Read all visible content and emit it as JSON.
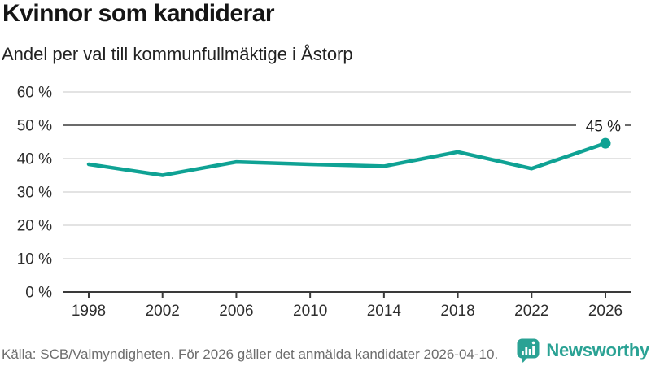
{
  "chart_data": {
    "type": "line",
    "title": "Kvinnor som kandiderar",
    "subtitle": "Andel per val till kommunfullmäktige i Åstorp",
    "x": [
      1998,
      2002,
      2006,
      2010,
      2014,
      2018,
      2022,
      2026
    ],
    "xtick_labels": [
      "1998",
      "2002",
      "2006",
      "2010",
      "2014",
      "2018",
      "2022",
      "2026"
    ],
    "values": [
      38.3,
      35,
      39,
      38.3,
      37.7,
      42,
      37,
      44.6
    ],
    "unit": "%",
    "ylim": [
      0,
      60
    ],
    "yticks": [
      0,
      10,
      20,
      30,
      40,
      50,
      60
    ],
    "ytick_labels": [
      "0 %",
      "10 %",
      "20 %",
      "30 %",
      "40 %",
      "50 %",
      "60 %"
    ],
    "grid": true,
    "emphasized_gridline": 50,
    "end_label": "45 %",
    "legend_position": "none",
    "line_color": "#0fa294",
    "axis_color": "#3a3a3a",
    "gridline_color": "#dadada",
    "emphasized_gridline_color": "#6b6b6b",
    "tick_label_color": "#2e2e2e",
    "end_label_color": "#1a1a1a"
  },
  "footer": {
    "source": "Källa: SCB/Valmyndigheten. För 2026 gäller det anmälda kandidater 2026-04-10.",
    "brand": "Newsworthy",
    "brand_color": "#2aa294",
    "logo_icon": "bar-chart-speech-bubble-icon"
  }
}
